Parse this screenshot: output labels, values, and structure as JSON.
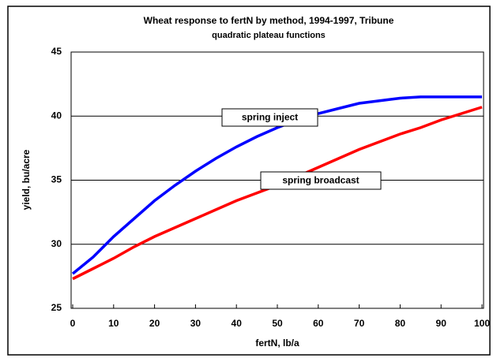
{
  "chart_data": {
    "type": "line",
    "title": "Wheat response to fertN by method, 1994-1997, Tribune",
    "subtitle": "quadratic plateau functions",
    "x_label": "fertN, lb/a",
    "y_label": "yield, bu/acre",
    "x": [
      0,
      5,
      10,
      15,
      20,
      25,
      30,
      35,
      40,
      45,
      50,
      55,
      60,
      65,
      70,
      75,
      80,
      85,
      90,
      95,
      100
    ],
    "series": [
      {
        "name": "spring inject",
        "color": "#0000ff",
        "values": [
          27.7,
          29.0,
          30.6,
          32.0,
          33.4,
          34.6,
          35.7,
          36.7,
          37.6,
          38.4,
          39.1,
          39.7,
          40.2,
          40.6,
          41.0,
          41.2,
          41.4,
          41.5,
          41.5,
          41.5,
          41.5
        ]
      },
      {
        "name": "spring broadcast",
        "color": "#ff0000",
        "values": [
          27.3,
          28.1,
          28.9,
          29.8,
          30.6,
          31.3,
          32.0,
          32.7,
          33.4,
          34.0,
          34.6,
          35.3,
          36.0,
          36.7,
          37.4,
          38.0,
          38.6,
          39.1,
          39.7,
          40.2,
          40.7
        ]
      }
    ],
    "xlim": [
      0,
      100
    ],
    "xticks": [
      0,
      10,
      20,
      30,
      40,
      50,
      60,
      70,
      80,
      90,
      100
    ],
    "ylim": [
      25,
      45
    ],
    "yticks": [
      25,
      30,
      35,
      40,
      45
    ],
    "grid": true
  }
}
